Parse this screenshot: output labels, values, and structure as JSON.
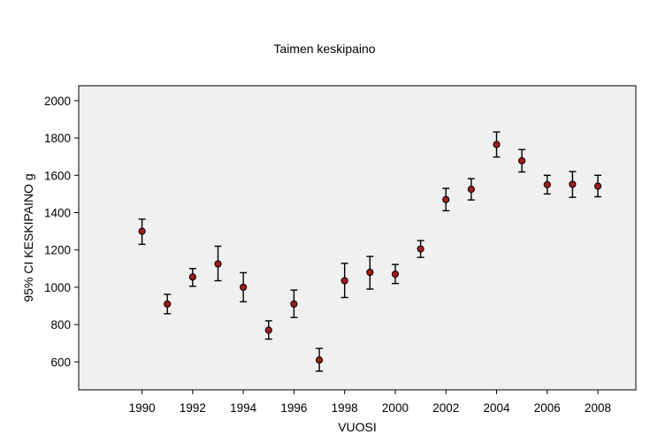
{
  "chart_data": {
    "type": "scatter",
    "title": "Taimen keskipaino",
    "xlabel": "VUOSI",
    "ylabel": "95% CI KESKIPAINO g",
    "xlim": [
      1987.5,
      2009.5
    ],
    "ylim": [
      450,
      2080
    ],
    "xticks": [
      1990,
      1992,
      1994,
      1996,
      1998,
      2000,
      2002,
      2004,
      2006,
      2008
    ],
    "yticks": [
      600,
      800,
      1000,
      1200,
      1400,
      1600,
      1800,
      2000
    ],
    "grid": false,
    "plot_background": "#f0f0f0",
    "marker_color": "#a01c1c",
    "series": [
      {
        "error_bars": "95% CI",
        "points": [
          {
            "x": 1990,
            "y": 1300,
            "low": 1230,
            "high": 1365
          },
          {
            "x": 1991,
            "y": 910,
            "low": 858,
            "high": 962
          },
          {
            "x": 1992,
            "y": 1055,
            "low": 1005,
            "high": 1100
          },
          {
            "x": 1993,
            "y": 1125,
            "low": 1035,
            "high": 1220
          },
          {
            "x": 1994,
            "y": 1000,
            "low": 922,
            "high": 1078
          },
          {
            "x": 1995,
            "y": 770,
            "low": 722,
            "high": 820
          },
          {
            "x": 1996,
            "y": 910,
            "low": 838,
            "high": 985
          },
          {
            "x": 1997,
            "y": 610,
            "low": 550,
            "high": 672
          },
          {
            "x": 1998,
            "y": 1035,
            "low": 945,
            "high": 1128
          },
          {
            "x": 1999,
            "y": 1080,
            "low": 990,
            "high": 1165
          },
          {
            "x": 2000,
            "y": 1070,
            "low": 1020,
            "high": 1122
          },
          {
            "x": 2001,
            "y": 1205,
            "low": 1160,
            "high": 1250
          },
          {
            "x": 2002,
            "y": 1470,
            "low": 1410,
            "high": 1530
          },
          {
            "x": 2003,
            "y": 1525,
            "low": 1468,
            "high": 1582
          },
          {
            "x": 2004,
            "y": 1765,
            "low": 1698,
            "high": 1832
          },
          {
            "x": 2005,
            "y": 1678,
            "low": 1618,
            "high": 1738
          },
          {
            "x": 2006,
            "y": 1550,
            "low": 1500,
            "high": 1600
          },
          {
            "x": 2007,
            "y": 1552,
            "low": 1482,
            "high": 1620
          },
          {
            "x": 2008,
            "y": 1542,
            "low": 1485,
            "high": 1600
          }
        ]
      }
    ]
  }
}
